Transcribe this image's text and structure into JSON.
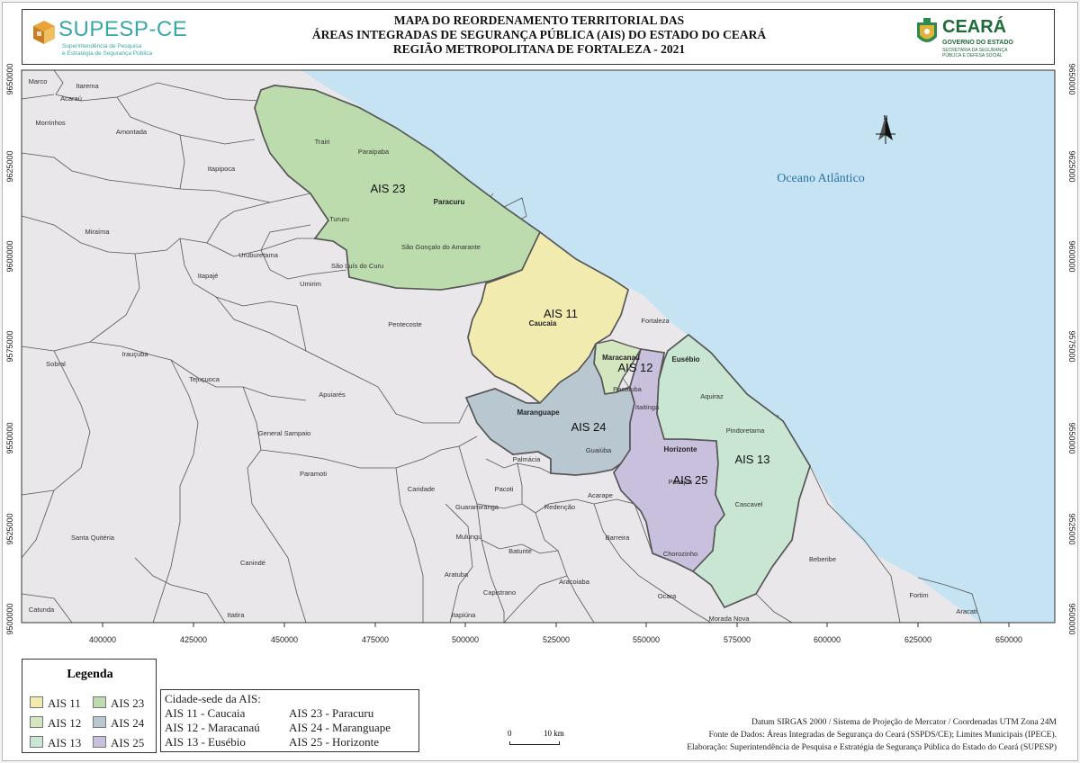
{
  "header": {
    "title_lines": [
      "MAPA DO REORDENAMENTO TERRITORIAL DAS",
      "ÁREAS INTEGRADAS DE SEGURANÇA PÚBLICA (AIS) DO ESTADO DO CEARÁ",
      "REGIÃO METROPOLITANA DE FORTALEZA - 2021"
    ],
    "logo_left": {
      "name": "SUPESP-CE",
      "sub1": "Superintendência de Pesquisa",
      "sub2": "e Estratégia de Segurança Pública"
    },
    "logo_right": {
      "name": "CEARÁ",
      "sub1": "GOVERNO DO ESTADO",
      "sub2a": "SECRETARIA DA SEGURANÇA",
      "sub2b": "PÚBLICA E DEFESA SOCIAL"
    }
  },
  "colors": {
    "ocean": "#c5e3f2",
    "land": "#e9e7e9",
    "ais11": "#f2ebb0",
    "ais12": "#d3e6bf",
    "ais13": "#c8e6d1",
    "ais23": "#bcdcad",
    "ais24": "#b8c7d0",
    "ais25": "#c9c0dd"
  },
  "map": {
    "ocean_label": "Oceano Atlântico",
    "north_label": "N",
    "x_ticks": [
      "400000",
      "425000",
      "450000",
      "475000",
      "500000",
      "525000",
      "550000",
      "575000",
      "600000",
      "625000",
      "650000"
    ],
    "y_ticks": [
      "9650000",
      "9625000",
      "9600000",
      "9575000",
      "9550000",
      "9525000",
      "9500000"
    ],
    "ais_labels": [
      "AIS 23",
      "AIS 11",
      "AIS 12",
      "AIS 24",
      "AIS 13",
      "AIS 25"
    ],
    "municipalities_bold": [
      "Paracuru",
      "Caucaia",
      "Maracanaú",
      "Eusébio",
      "Maranguape",
      "Horizonte"
    ],
    "municipalities": [
      "Marco",
      "Itarema",
      "Acaraú",
      "Morrinhos",
      "Amontada",
      "Itapipoca",
      "Trairi",
      "Paraipaba",
      "Tururu",
      "Miraíma",
      "Uruburetama",
      "São Gonçalo do Amarante",
      "São Luís do Curu",
      "Umirim",
      "Itapajé",
      "Fortaleza",
      "Pentecoste",
      "Irauçuba",
      "Sobral",
      "Tejuçuoca",
      "Apuiarés",
      "Pacatuba",
      "Itaitinga",
      "Aquiraz",
      "Pindoretama",
      "General Sampaio",
      "Guaiúba",
      "Palmácia",
      "Paramoti",
      "Caridade",
      "Pacoti",
      "Acarape",
      "Pacajus",
      "Cascavel",
      "Guaramiranga",
      "Redenção",
      "Santa Quitéria",
      "Mulungu",
      "Baturité",
      "Barreira",
      "Chorozinho",
      "Canindé",
      "Beberibe",
      "Aratuba",
      "Aracoiaba",
      "Capistrano",
      "Ocara",
      "Fortim",
      "Itapiúna",
      "Aracati",
      "Morada Nova",
      "Catunda",
      "Itatira"
    ]
  },
  "legend": {
    "title": "Legenda",
    "items": [
      "AIS 11",
      "AIS 23",
      "AIS 12",
      "AIS 24",
      "AIS 13",
      "AIS 25"
    ]
  },
  "cities": {
    "title": "Cidade-sede da AIS:",
    "items": [
      "AIS 11 - Caucaia",
      "AIS 12 - Maracanaú",
      "AIS 13 - Eusébio",
      "AIS 23 - Paracuru",
      "AIS 24 - Maranguape",
      "AIS 25 - Horizonte"
    ]
  },
  "scale": {
    "start": "0",
    "end": "10 km"
  },
  "credits": [
    "Datum SIRGAS 2000 / Sistema de Projeção de Mercator / Coordenadas UTM Zona 24M",
    "Fonte de Dados: Áreas Integradas de Segurança do Ceará (SSPDS/CE);  Limites Municipais (IPECE).",
    "Elaboração: Superintendência de Pesquisa e Estratégia de Segurança Pública do Estado do Ceará (SUPESP)"
  ]
}
